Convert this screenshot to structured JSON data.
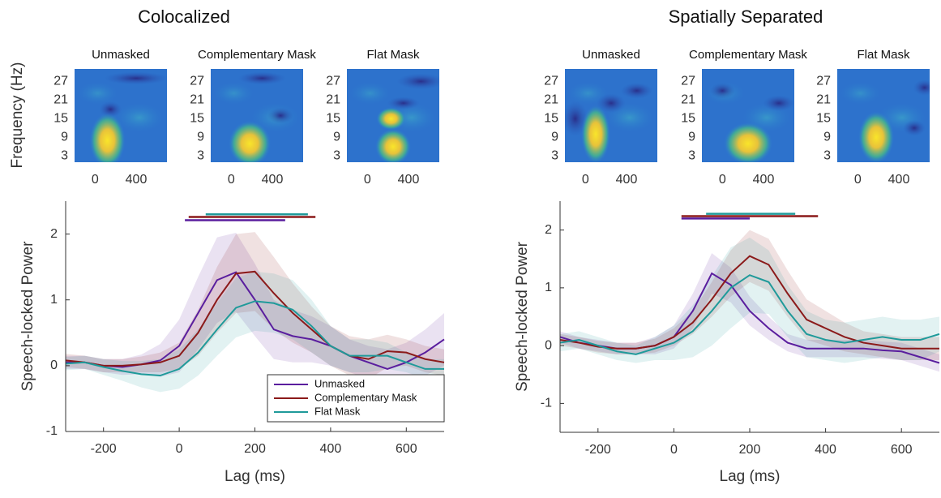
{
  "chart_data": [
    {
      "type": "line",
      "title": "Colocalized",
      "heatmap_titles": [
        "Unmasked",
        "Complementary Mask",
        "Flat Mask"
      ],
      "heatmap_ylabel": "Frequency (Hz)",
      "heatmap_xlim": [
        -200,
        700
      ],
      "heatmap_xticks": [
        0,
        400
      ],
      "heatmap_ylim": [
        1,
        31
      ],
      "heatmap_yticks": [
        3,
        9,
        15,
        21,
        27
      ],
      "xlabel": "Lag (ms)",
      "ylabel": "Speech-locked Power",
      "xlim": [
        -300,
        700
      ],
      "xticks": [
        -200,
        0,
        200,
        400,
        600
      ],
      "ylim": [
        -1,
        2.5
      ],
      "yticks": [
        -1,
        0,
        1,
        2
      ],
      "legend": "lower right",
      "x": [
        -300,
        -250,
        -200,
        -150,
        -100,
        -50,
        0,
        50,
        100,
        150,
        200,
        250,
        300,
        350,
        400,
        450,
        500,
        550,
        600,
        650,
        700
      ],
      "series": [
        {
          "name": "Unmasked",
          "color": "#5a1e9e",
          "values": [
            0.05,
            0.05,
            0.0,
            -0.02,
            0.02,
            0.08,
            0.3,
            0.8,
            1.3,
            1.42,
            1.0,
            0.55,
            0.45,
            0.4,
            0.3,
            0.15,
            0.05,
            -0.05,
            0.05,
            0.2,
            0.4
          ],
          "ci": [
            0.1,
            0.1,
            0.1,
            0.12,
            0.15,
            0.25,
            0.4,
            0.55,
            0.65,
            0.6,
            0.55,
            0.45,
            0.4,
            0.35,
            0.3,
            0.25,
            0.25,
            0.3,
            0.3,
            0.35,
            0.4
          ],
          "sig": [
            15,
            280
          ],
          "sig_y": 2.21
        },
        {
          "name": "Complementary Mask",
          "color": "#8b1a1a",
          "values": [
            0.08,
            0.05,
            0.0,
            0.0,
            0.02,
            0.05,
            0.15,
            0.5,
            1.0,
            1.4,
            1.43,
            1.1,
            0.8,
            0.55,
            0.3,
            0.15,
            0.1,
            0.22,
            0.2,
            0.1,
            0.05
          ],
          "ci": [
            0.1,
            0.1,
            0.1,
            0.1,
            0.12,
            0.15,
            0.2,
            0.35,
            0.5,
            0.6,
            0.6,
            0.55,
            0.45,
            0.35,
            0.3,
            0.3,
            0.3,
            0.25,
            0.2,
            0.2,
            0.2
          ],
          "sig": [
            25,
            360
          ],
          "sig_y": 2.26
        },
        {
          "name": "Flat Mask",
          "color": "#1f9a9a",
          "values": [
            0.03,
            0.05,
            -0.02,
            -0.08,
            -0.13,
            -0.15,
            -0.05,
            0.2,
            0.55,
            0.88,
            0.98,
            0.95,
            0.85,
            0.6,
            0.3,
            0.15,
            0.15,
            0.15,
            0.05,
            -0.05,
            -0.05
          ],
          "ci": [
            0.1,
            0.1,
            0.12,
            0.15,
            0.2,
            0.25,
            0.3,
            0.35,
            0.4,
            0.45,
            0.45,
            0.45,
            0.45,
            0.4,
            0.3,
            0.25,
            0.25,
            0.2,
            0.15,
            0.15,
            0.15
          ],
          "sig": [
            70,
            340
          ],
          "sig_y": 2.3
        }
      ]
    },
    {
      "type": "line",
      "title": "Spatially Separated",
      "heatmap_titles": [
        "Unmasked",
        "Complementary Mask",
        "Flat Mask"
      ],
      "heatmap_xlim": [
        -200,
        700
      ],
      "heatmap_xticks": [
        0,
        400
      ],
      "heatmap_ylim": [
        1,
        31
      ],
      "heatmap_yticks": [
        3,
        9,
        15,
        21,
        27
      ],
      "xlabel": "Lag (ms)",
      "ylabel": "Speech-locked Power",
      "xlim": [
        -300,
        700
      ],
      "xticks": [
        -200,
        0,
        200,
        400,
        600
      ],
      "ylim": [
        -1.5,
        2.5
      ],
      "yticks": [
        -1,
        0,
        1,
        2
      ],
      "x": [
        -300,
        -250,
        -200,
        -150,
        -100,
        -50,
        0,
        50,
        100,
        150,
        200,
        250,
        300,
        350,
        400,
        450,
        500,
        550,
        600,
        650,
        700
      ],
      "series": [
        {
          "name": "Unmasked",
          "color": "#5a1e9e",
          "values": [
            0.15,
            0.05,
            0.0,
            -0.05,
            -0.05,
            0.0,
            0.15,
            0.6,
            1.25,
            1.05,
            0.6,
            0.3,
            0.05,
            -0.05,
            -0.05,
            -0.05,
            -0.05,
            -0.08,
            -0.1,
            -0.2,
            -0.3
          ],
          "ci": [
            0.1,
            0.1,
            0.1,
            0.1,
            0.1,
            0.15,
            0.2,
            0.3,
            0.35,
            0.3,
            0.25,
            0.2,
            0.15,
            0.15,
            0.15,
            0.15,
            0.15,
            0.15,
            0.15,
            0.15,
            0.15
          ],
          "sig": [
            20,
            200
          ],
          "sig_y": 2.2
        },
        {
          "name": "Complementary Mask",
          "color": "#8b1a1a",
          "values": [
            0.1,
            0.05,
            -0.02,
            -0.05,
            -0.05,
            0.0,
            0.15,
            0.4,
            0.8,
            1.25,
            1.55,
            1.4,
            0.9,
            0.45,
            0.3,
            0.15,
            0.05,
            0.0,
            -0.05,
            -0.05,
            -0.05
          ],
          "ci": [
            0.1,
            0.1,
            0.1,
            0.1,
            0.1,
            0.12,
            0.15,
            0.2,
            0.3,
            0.4,
            0.45,
            0.45,
            0.4,
            0.35,
            0.3,
            0.25,
            0.2,
            0.2,
            0.2,
            0.2,
            0.2
          ],
          "sig": [
            20,
            380
          ],
          "sig_y": 2.24
        },
        {
          "name": "Flat Mask",
          "color": "#1f9a9a",
          "values": [
            0.05,
            0.1,
            0.0,
            -0.1,
            -0.15,
            -0.05,
            0.05,
            0.25,
            0.6,
            1.0,
            1.22,
            1.1,
            0.6,
            0.2,
            0.1,
            0.05,
            0.1,
            0.15,
            0.1,
            0.1,
            0.2
          ],
          "ci": [
            0.15,
            0.15,
            0.15,
            0.15,
            0.15,
            0.2,
            0.3,
            0.45,
            0.6,
            0.7,
            0.65,
            0.55,
            0.45,
            0.4,
            0.35,
            0.35,
            0.35,
            0.35,
            0.35,
            0.35,
            0.3
          ],
          "sig": [
            85,
            320
          ],
          "sig_y": 2.28
        }
      ]
    }
  ]
}
